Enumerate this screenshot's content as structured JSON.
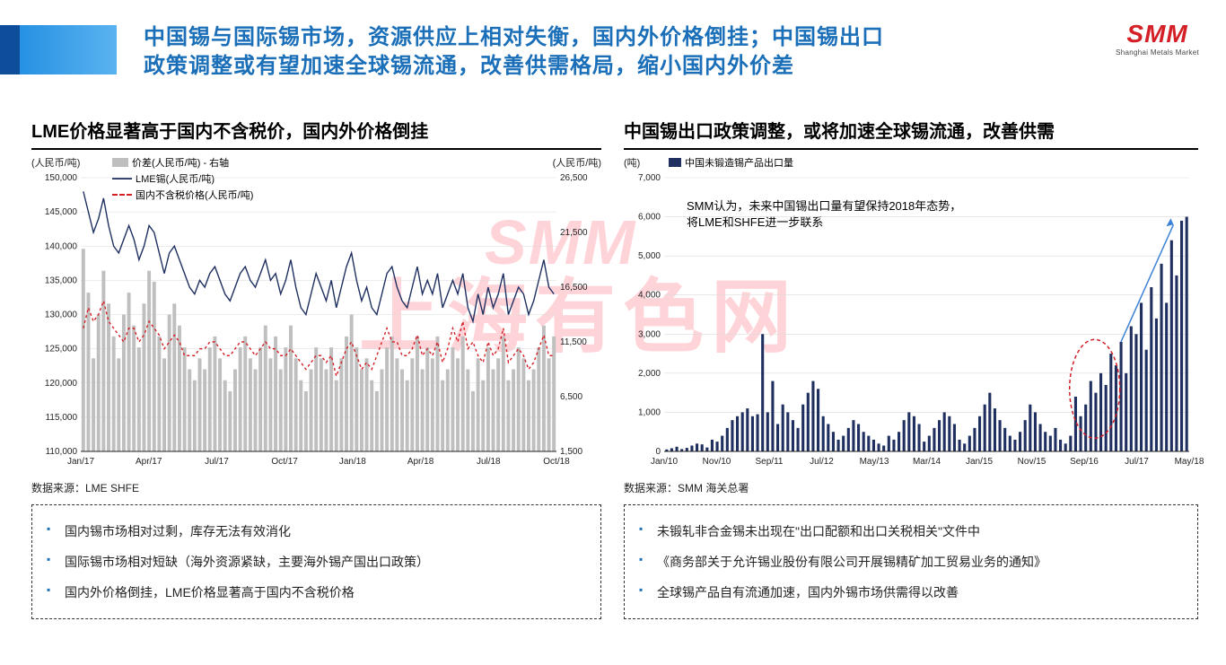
{
  "logo": {
    "text": "SMM",
    "sub": "Shanghai Metals Market"
  },
  "main_title_line1": "中国锡与国际锡市场，资源供应上相对失衡，国内外价格倒挂；中国锡出口",
  "main_title_line2": "政策调整或有望加速全球锡流通，改善供需格局，缩小国内外价差",
  "watermark": "上海有色网",
  "watermark_logo": "SMM",
  "left": {
    "title": "LME价格显著高于国内不含税价，国内外价格倒挂",
    "y_left_label": "(人民币/吨)",
    "y_right_label": "(人民币/吨)",
    "legend": {
      "bars": "价差(人民币/吨) - 右轴",
      "navy": "LME锡(人民币/吨)",
      "red": "国内不含税价格(人民币/吨)"
    },
    "source": "数据来源：LME SHFE",
    "bullets": [
      "国内锡市场相对过剩，库存无法有效消化",
      "国际锡市场相对短缺（海外资源紧缺，主要海外锡产国出口政策）",
      "国内外价格倒挂，LME价格显著高于国内不含税价格"
    ],
    "chart": {
      "type": "combo-bar-line",
      "y_left_min": 110000,
      "y_left_max": 150000,
      "y_left_step": 5000,
      "y_right_min": 1500,
      "y_right_max": 26500,
      "y_right_step": 5000,
      "x_labels": [
        "Jan/17",
        "Apr/17",
        "Jul/17",
        "Oct/17",
        "Jan/18",
        "Apr/18",
        "Jul/18",
        "Oct/18"
      ],
      "colors": {
        "bar": "#bfbfbf",
        "navy": "#1e2f60",
        "red": "#d41f26",
        "grid": "#d9d9d9",
        "bg": "#ffffff"
      },
      "line_width": 1.4,
      "red_dash": "3,3",
      "bars": [
        20000,
        16000,
        10000,
        14000,
        18000,
        15000,
        12000,
        10000,
        14000,
        16000,
        13000,
        11000,
        15000,
        18000,
        17000,
        12000,
        10000,
        14000,
        15000,
        13000,
        11000,
        9000,
        8000,
        10000,
        9000,
        11000,
        12000,
        10000,
        8000,
        7000,
        9000,
        11000,
        12000,
        10000,
        9000,
        11000,
        13000,
        10000,
        12000,
        9000,
        11000,
        13000,
        10000,
        8000,
        7000,
        9000,
        11000,
        10000,
        9000,
        11000,
        8000,
        10000,
        12000,
        14000,
        11000,
        9000,
        10000,
        8000,
        7000,
        9000,
        11000,
        12000,
        10000,
        9000,
        8000,
        10000,
        12000,
        9000,
        11000,
        10000,
        12000,
        8000,
        9000,
        11000,
        10000,
        12000,
        9000,
        7000,
        10000,
        8000,
        11000,
        9000,
        10000,
        12000,
        8000,
        9000,
        11000,
        10000,
        8000,
        9000,
        11000,
        13000,
        10000,
        12000
      ],
      "navy_line": [
        148000,
        145000,
        142000,
        144000,
        147000,
        143000,
        140000,
        139000,
        141000,
        143000,
        141000,
        138000,
        140000,
        143000,
        142000,
        139000,
        136000,
        139000,
        140000,
        138000,
        136000,
        134000,
        133000,
        135000,
        134000,
        136000,
        137000,
        135000,
        133000,
        132000,
        134000,
        136000,
        137000,
        135000,
        134000,
        136000,
        138000,
        135000,
        136000,
        133000,
        135000,
        138000,
        134000,
        131000,
        130000,
        133000,
        136000,
        134000,
        132000,
        135000,
        131000,
        134000,
        137000,
        139000,
        135000,
        132000,
        134000,
        131000,
        130000,
        133000,
        136000,
        137000,
        134000,
        132000,
        131000,
        134000,
        137000,
        133000,
        135000,
        133000,
        136000,
        131000,
        133000,
        135000,
        133000,
        136000,
        131000,
        129000,
        133000,
        130000,
        134000,
        131000,
        133000,
        136000,
        130000,
        132000,
        134000,
        133000,
        130000,
        132000,
        135000,
        138000,
        134000,
        133000
      ],
      "red_line": [
        128000,
        131000,
        129000,
        130000,
        132000,
        129000,
        128000,
        127000,
        126000,
        128000,
        128000,
        126000,
        127000,
        129000,
        128000,
        127000,
        125000,
        126000,
        127000,
        126000,
        124000,
        124000,
        124000,
        125000,
        125000,
        126000,
        126000,
        125000,
        124000,
        124000,
        125000,
        126000,
        126000,
        125000,
        124000,
        125000,
        126000,
        125000,
        125000,
        124000,
        124000,
        125000,
        124000,
        123000,
        122000,
        123000,
        124000,
        124000,
        123000,
        124000,
        121000,
        123000,
        125000,
        126000,
        124000,
        122000,
        123000,
        122000,
        124000,
        126000,
        128000,
        126000,
        126000,
        124000,
        124000,
        125000,
        127000,
        124000,
        125000,
        124000,
        126000,
        123000,
        125000,
        128000,
        126000,
        129000,
        125000,
        126000,
        124000,
        123000,
        126000,
        124000,
        125000,
        128000,
        123000,
        124000,
        125000,
        124000,
        122000,
        123000,
        125000,
        127000,
        124000,
        124000
      ]
    }
  },
  "right": {
    "title": "中国锡出口政策调整，或将加速全球锡流通，改善供需",
    "y_label": "(吨)",
    "legend": "中国未锻造锡产品出口量",
    "note_line1": "SMM认为，未来中国锡出口量有望保持2018年态势，",
    "note_line2": "将LME和SHFE进一步联系",
    "source": "数据来源：SMM 海关总署",
    "bullets": [
      "未锻轧非合金锡未出现在\"出口配额和出口关税相关\"文件中",
      "《商务部关于允许锡业股份有限公司开展锡精矿加工贸易业务的通知》",
      "全球锡产品自有流通加速，国内外锡市场供需得以改善"
    ],
    "chart": {
      "type": "bar",
      "y_min": 0,
      "y_max": 7000,
      "y_step": 1000,
      "x_labels": [
        "Jan/10",
        "Nov/10",
        "Sep/11",
        "Jul/12",
        "May/13",
        "Mar/14",
        "Jan/15",
        "Nov/15",
        "Sep/16",
        "Jul/17",
        "May/18"
      ],
      "bar_color": "#1e2f60",
      "grid_color": "#d9d9d9",
      "annotation_color": "#d41f26",
      "arrow_color": "#3d82d4",
      "values": [
        50,
        80,
        120,
        60,
        90,
        150,
        200,
        180,
        100,
        300,
        250,
        400,
        600,
        800,
        900,
        1000,
        1100,
        900,
        950,
        3000,
        1000,
        1800,
        700,
        1200,
        1000,
        800,
        600,
        1200,
        1500,
        1800,
        1600,
        900,
        700,
        500,
        300,
        400,
        600,
        800,
        700,
        500,
        400,
        300,
        200,
        150,
        400,
        300,
        500,
        800,
        1000,
        900,
        700,
        250,
        400,
        600,
        800,
        1000,
        900,
        700,
        300,
        200,
        400,
        600,
        900,
        1200,
        1500,
        1100,
        800,
        600,
        400,
        300,
        500,
        800,
        1200,
        1000,
        700,
        500,
        400,
        600,
        300,
        200,
        400,
        1400,
        900,
        1200,
        1800,
        1500,
        2000,
        1700,
        2500,
        2200,
        2800,
        2000,
        3200,
        3000,
        3800,
        2600,
        4200,
        3400,
        4800,
        3800,
        5400,
        4500,
        5900,
        6000
      ]
    }
  }
}
